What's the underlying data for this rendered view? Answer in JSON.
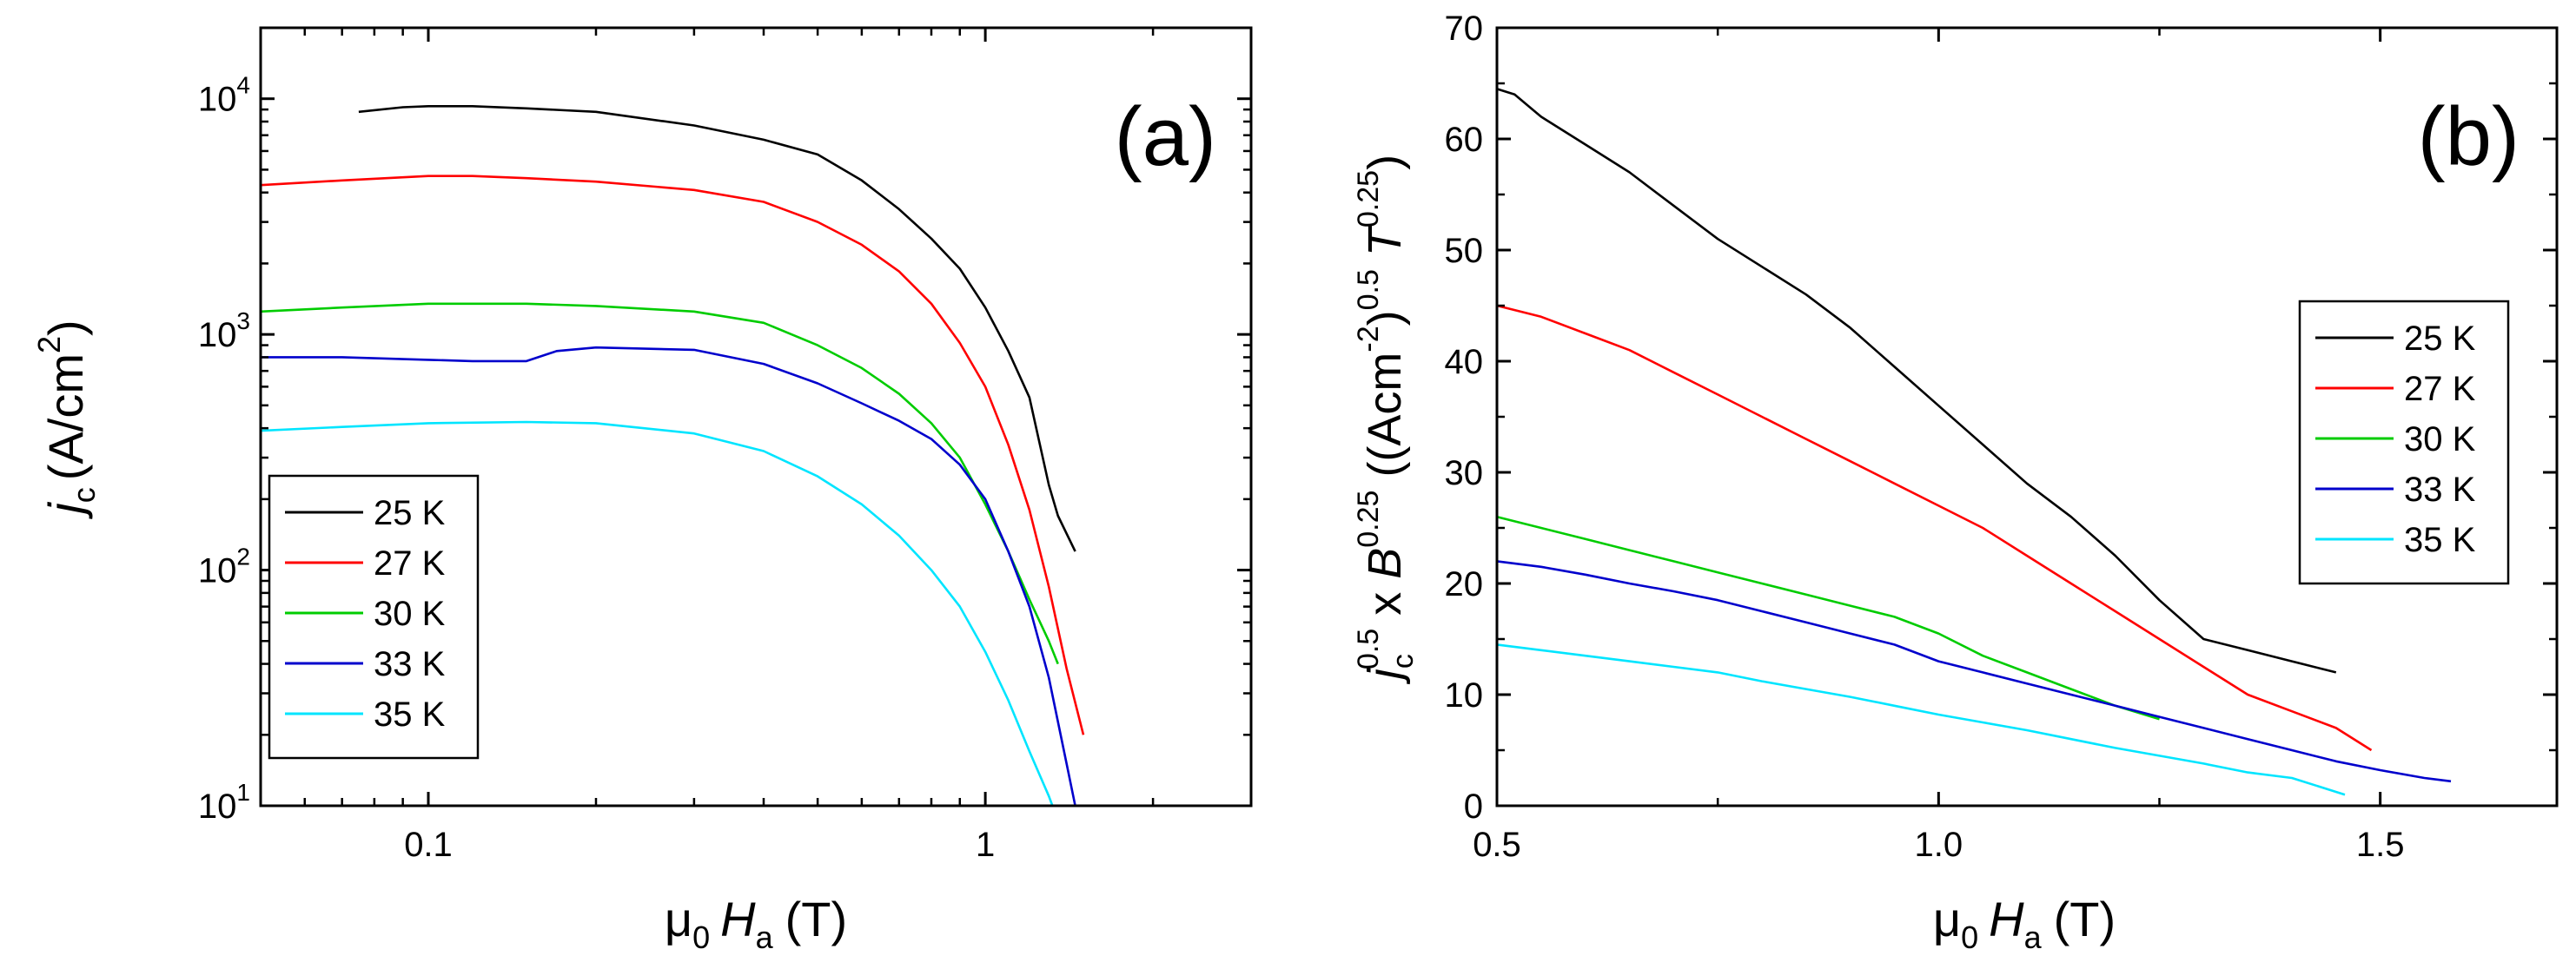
{
  "chart_data": [
    {
      "type": "line",
      "panel_label": "(a)",
      "xscale": "log",
      "yscale": "log",
      "xlim": [
        0.05,
        3.0
      ],
      "ylim": [
        10,
        20000
      ],
      "x_ticks": [
        {
          "value": 0.1,
          "label": "0.1"
        },
        {
          "value": 1,
          "label": "1"
        }
      ],
      "y_ticks": [
        {
          "value": 10,
          "base": "10",
          "exp": "1"
        },
        {
          "value": 100,
          "base": "10",
          "exp": "2"
        },
        {
          "value": 1000,
          "base": "10",
          "exp": "3"
        },
        {
          "value": 10000,
          "base": "10",
          "exp": "4"
        }
      ],
      "xlabel": {
        "mu": "μ",
        "mu_sub": "0",
        "var": "H",
        "var_sub": "a",
        "unit": "(T)"
      },
      "ylabel": {
        "var": "j",
        "sub": "c",
        "unit_pre": "(A/cm",
        "unit_sup": "2",
        "unit_post": ")"
      },
      "legend": {
        "position": "bottom-left"
      },
      "series": [
        {
          "name": "25 K",
          "color": "#000000",
          "x": [
            0.075,
            0.09,
            0.1,
            0.12,
            0.15,
            0.2,
            0.3,
            0.4,
            0.5,
            0.6,
            0.7,
            0.8,
            0.9,
            1.0,
            1.1,
            1.2,
            1.3,
            1.35,
            1.45
          ],
          "y": [
            8800,
            9200,
            9300,
            9300,
            9100,
            8800,
            7700,
            6700,
            5800,
            4500,
            3400,
            2550,
            1900,
            1300,
            850,
            540,
            230,
            170,
            120
          ]
        },
        {
          "name": "27 K",
          "color": "#ff0000",
          "x": [
            0.05,
            0.07,
            0.1,
            0.12,
            0.15,
            0.2,
            0.3,
            0.4,
            0.5,
            0.6,
            0.7,
            0.8,
            0.9,
            1.0,
            1.1,
            1.2,
            1.3,
            1.4,
            1.5
          ],
          "y": [
            4300,
            4500,
            4700,
            4700,
            4600,
            4450,
            4100,
            3650,
            3000,
            2400,
            1850,
            1350,
            920,
            600,
            340,
            180,
            85,
            38,
            20
          ]
        },
        {
          "name": "30 K",
          "color": "#00cc00",
          "x": [
            0.05,
            0.07,
            0.1,
            0.15,
            0.2,
            0.3,
            0.4,
            0.5,
            0.6,
            0.7,
            0.8,
            0.9,
            1.0,
            1.1,
            1.2,
            1.3,
            1.35
          ],
          "y": [
            1250,
            1300,
            1350,
            1350,
            1320,
            1250,
            1120,
            900,
            720,
            560,
            420,
            300,
            190,
            120,
            75,
            50,
            40
          ]
        },
        {
          "name": "33 K",
          "color": "#0000cc",
          "x": [
            0.05,
            0.07,
            0.1,
            0.12,
            0.15,
            0.17,
            0.2,
            0.3,
            0.4,
            0.5,
            0.6,
            0.7,
            0.8,
            0.9,
            1.0,
            1.1,
            1.2,
            1.3,
            1.4,
            1.45
          ],
          "y": [
            800,
            800,
            780,
            770,
            770,
            850,
            880,
            860,
            750,
            620,
            510,
            430,
            360,
            280,
            200,
            120,
            70,
            35,
            15,
            10
          ]
        },
        {
          "name": "35 K",
          "color": "#00e5ff",
          "x": [
            0.05,
            0.07,
            0.1,
            0.15,
            0.2,
            0.3,
            0.4,
            0.5,
            0.6,
            0.7,
            0.8,
            0.9,
            1.0,
            1.1,
            1.2,
            1.3,
            1.32
          ],
          "y": [
            390,
            405,
            420,
            425,
            420,
            380,
            320,
            250,
            190,
            140,
            100,
            70,
            45,
            28,
            17,
            11,
            10
          ]
        }
      ]
    },
    {
      "type": "line",
      "panel_label": "(b)",
      "xscale": "linear",
      "yscale": "linear",
      "xlim": [
        0.5,
        1.7
      ],
      "ylim": [
        0,
        70
      ],
      "x_ticks": [
        {
          "value": 0.5,
          "label": "0.5"
        },
        {
          "value": 1.0,
          "label": "1.0"
        },
        {
          "value": 1.5,
          "label": "1.5"
        }
      ],
      "y_ticks": [
        {
          "value": 0,
          "label": "0"
        },
        {
          "value": 10,
          "label": "10"
        },
        {
          "value": 20,
          "label": "20"
        },
        {
          "value": 30,
          "label": "30"
        },
        {
          "value": 40,
          "label": "40"
        },
        {
          "value": 50,
          "label": "50"
        },
        {
          "value": 60,
          "label": "60"
        },
        {
          "value": 70,
          "label": "70"
        }
      ],
      "xlabel": {
        "mu": "μ",
        "mu_sub": "0",
        "var": "H",
        "var_sub": "a",
        "unit": "(T)"
      },
      "ylabel": {
        "j": "j",
        "j_sub": "c",
        "j_sup": "0.5",
        "times": " x ",
        "b": "B",
        "b_sup": "0.25",
        "paren": " ((Acm",
        "acm_sup": "-2",
        "close": ")",
        "close_sup": "0.5",
        "t": " T",
        "t_sup": "0.25",
        "end": ")"
      },
      "legend": {
        "position": "right"
      },
      "series": [
        {
          "name": "25 K",
          "color": "#000000",
          "x": [
            0.5,
            0.52,
            0.55,
            0.6,
            0.65,
            0.7,
            0.75,
            0.8,
            0.85,
            0.9,
            0.95,
            1.0,
            1.05,
            1.1,
            1.15,
            1.2,
            1.25,
            1.3,
            1.35,
            1.4,
            1.45
          ],
          "y": [
            64.5,
            64,
            62,
            59.5,
            57,
            54,
            51,
            48.5,
            46,
            43,
            39.5,
            36,
            32.5,
            29,
            26,
            22.5,
            18.5,
            15,
            14,
            13,
            12
          ]
        },
        {
          "name": "27 K",
          "color": "#ff0000",
          "x": [
            0.5,
            0.55,
            0.6,
            0.65,
            0.7,
            0.75,
            0.8,
            0.85,
            0.9,
            0.95,
            1.0,
            1.05,
            1.1,
            1.15,
            1.2,
            1.25,
            1.3,
            1.35,
            1.4,
            1.45,
            1.49
          ],
          "y": [
            45,
            44,
            42.5,
            41,
            39,
            37,
            35,
            33,
            31,
            29,
            27,
            25,
            22.5,
            20,
            17.5,
            15,
            12.5,
            10,
            8.5,
            7,
            5
          ]
        },
        {
          "name": "30 K",
          "color": "#00cc00",
          "x": [
            0.5,
            0.55,
            0.6,
            0.65,
            0.7,
            0.75,
            0.8,
            0.85,
            0.9,
            0.95,
            1.0,
            1.05,
            1.1,
            1.15,
            1.2,
            1.25
          ],
          "y": [
            26,
            25,
            24,
            23,
            22,
            21,
            20,
            19,
            18,
            17,
            15.5,
            13.5,
            12,
            10.5,
            9,
            7.8
          ]
        },
        {
          "name": "33 K",
          "color": "#0000cc",
          "x": [
            0.5,
            0.55,
            0.6,
            0.65,
            0.7,
            0.75,
            0.8,
            0.85,
            0.9,
            0.95,
            1.0,
            1.05,
            1.1,
            1.15,
            1.2,
            1.25,
            1.3,
            1.35,
            1.4,
            1.45,
            1.5,
            1.55,
            1.58
          ],
          "y": [
            22,
            21.5,
            20.8,
            20,
            19.3,
            18.5,
            17.5,
            16.5,
            15.5,
            14.5,
            13,
            12,
            11,
            10,
            9,
            8,
            7,
            6,
            5,
            4,
            3.2,
            2.5,
            2.2
          ]
        },
        {
          "name": "35 K",
          "color": "#00e5ff",
          "x": [
            0.5,
            0.55,
            0.6,
            0.65,
            0.7,
            0.75,
            0.8,
            0.85,
            0.9,
            0.95,
            1.0,
            1.05,
            1.1,
            1.15,
            1.2,
            1.25,
            1.3,
            1.35,
            1.4,
            1.46
          ],
          "y": [
            14.5,
            14,
            13.5,
            13,
            12.5,
            12,
            11.2,
            10.5,
            9.8,
            9,
            8.2,
            7.5,
            6.8,
            6,
            5.2,
            4.5,
            3.8,
            3,
            2.5,
            1
          ]
        }
      ]
    }
  ]
}
